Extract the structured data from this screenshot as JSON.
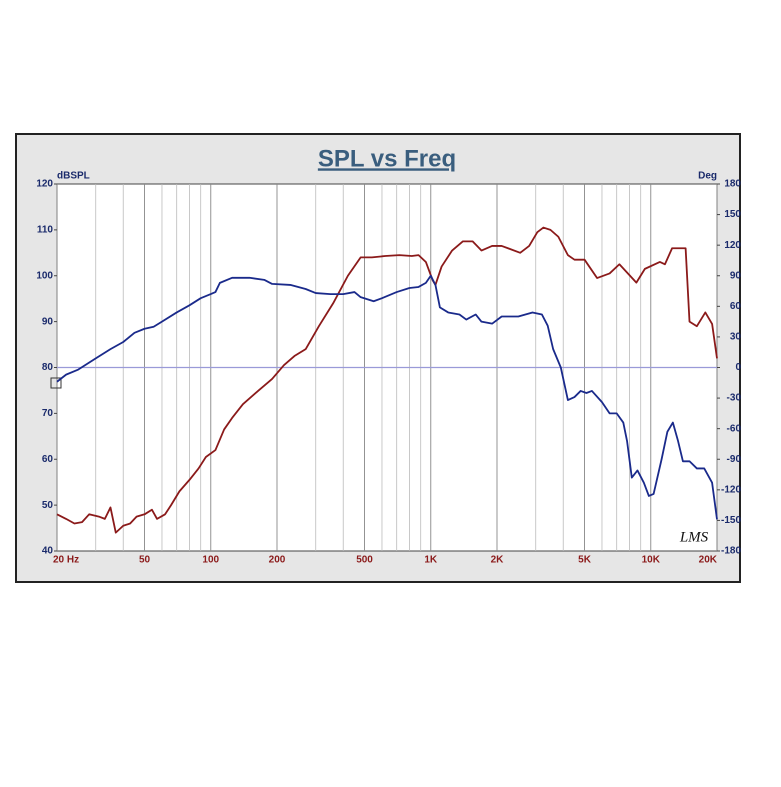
{
  "chart_data": {
    "type": "line",
    "title": "SPL vs Freq",
    "ylabel": "dBSPL",
    "y2label": "Deg",
    "watermark": "LMS",
    "xscale": "log",
    "xlim": [
      20,
      20000
    ],
    "xticks": [
      {
        "value": 20,
        "label": "20 Hz"
      },
      50,
      100,
      200,
      500,
      {
        "value": 1000,
        "label": "1K"
      },
      {
        "value": 2000,
        "label": "2K"
      },
      {
        "value": 5000,
        "label": "5K"
      },
      {
        "value": 10000,
        "label": "10K"
      },
      {
        "value": 20000,
        "label": "20K"
      }
    ],
    "xminor": [
      30,
      40,
      60,
      70,
      80,
      90,
      300,
      400,
      600,
      700,
      800,
      900,
      3000,
      4000,
      6000,
      7000,
      8000,
      9000
    ],
    "ylim": [
      40,
      120
    ],
    "yticks": [
      40,
      50,
      60,
      70,
      80,
      90,
      100,
      110,
      120
    ],
    "y2lim": [
      -180,
      180
    ],
    "y2ticks": [
      -180,
      -150,
      -120,
      -90,
      -60,
      -30,
      0,
      30,
      60,
      90,
      120,
      150,
      180
    ],
    "reference_line_y2": 0,
    "series": [
      {
        "color": "#8b1a1a",
        "x": [
          20,
          22,
          24,
          26,
          28,
          31,
          33,
          35,
          37,
          40,
          43,
          46,
          50,
          54,
          57,
          62,
          66,
          72,
          80,
          88,
          95,
          105,
          115,
          125,
          140,
          165,
          190,
          215,
          240,
          270,
          310,
          360,
          420,
          480,
          540,
          620,
          720,
          820,
          880,
          950,
          1020,
          1050,
          1120,
          1250,
          1400,
          1550,
          1700,
          1900,
          2100,
          2300,
          2550,
          2800,
          3050,
          3250,
          3500,
          3800,
          4200,
          4500,
          5000,
          5700,
          6500,
          7200,
          8600,
          9400,
          11000,
          11600,
          12500,
          14400,
          15000,
          16200,
          17700,
          19000,
          20000
        ],
        "values": [
          48,
          47,
          46,
          46.3,
          48,
          47.5,
          47,
          49.5,
          44,
          45.5,
          46,
          47.5,
          48,
          49,
          47,
          48,
          50,
          53,
          55.5,
          58,
          60.5,
          62,
          66.5,
          69,
          72,
          75,
          77.5,
          80.5,
          82.5,
          84,
          89,
          94,
          100,
          104,
          104,
          104.3,
          104.5,
          104.3,
          104.5,
          103,
          99,
          98,
          102,
          105.5,
          107.5,
          107.5,
          105.5,
          106.5,
          106.5,
          105.8,
          105,
          106.5,
          109.5,
          110.5,
          110,
          108.5,
          104.5,
          103.5,
          103.5,
          99.5,
          100.5,
          102.5,
          98.5,
          101.5,
          103,
          102.5,
          106,
          106,
          90,
          89,
          92,
          89.5,
          82
        ]
      },
      {
        "color": "#1a2a8b",
        "axis": "y2",
        "x": [
          20,
          22,
          25,
          30,
          35,
          40,
          45,
          50,
          55,
          60,
          70,
          80,
          90,
          100,
          105,
          110,
          125,
          150,
          175,
          190,
          230,
          270,
          300,
          350,
          400,
          450,
          480,
          550,
          600,
          700,
          800,
          880,
          950,
          1000,
          1050,
          1100,
          1200,
          1350,
          1450,
          1600,
          1700,
          1900,
          2100,
          2500,
          2900,
          3200,
          3400,
          3600,
          3900,
          4200,
          4500,
          4800,
          5100,
          5400,
          6000,
          6500,
          7000,
          7500,
          7800,
          8200,
          8700,
          9300,
          9800,
          10300,
          11200,
          11900,
          12600,
          13300,
          14000,
          15000,
          16200,
          17500,
          19000,
          20000
        ],
        "values": [
          -14,
          -7,
          -2,
          9,
          18,
          25,
          34,
          38,
          40,
          45,
          54,
          61,
          68,
          72,
          74,
          83,
          88,
          88,
          86,
          82,
          81,
          77,
          73,
          72,
          72,
          74,
          69,
          65,
          68,
          74,
          78,
          79,
          83,
          90,
          81,
          59,
          54,
          52,
          47,
          52,
          45,
          43,
          50,
          50,
          54,
          52,
          41,
          18,
          0,
          -32,
          -29,
          -23,
          -25,
          -23,
          -34,
          -45,
          -45,
          -54,
          -72,
          -108,
          -101,
          -113,
          -126,
          -124,
          -90,
          -63,
          -54,
          -72,
          -92,
          -92,
          -99,
          -99,
          -113,
          -149
        ]
      }
    ]
  }
}
